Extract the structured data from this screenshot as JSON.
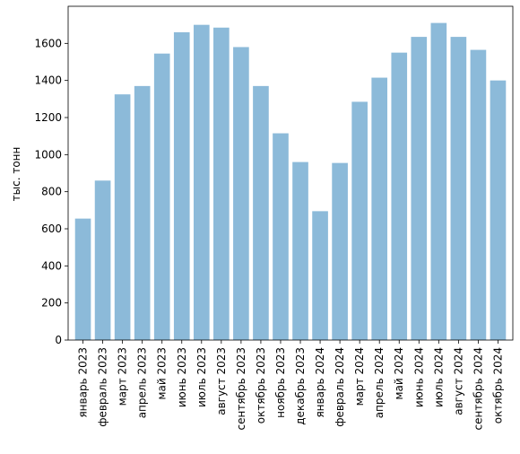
{
  "chart_data": {
    "type": "bar",
    "title": "",
    "xlabel": "",
    "ylabel": "тыс. тонн",
    "ylim": [
      0,
      1800
    ],
    "yticks": [
      0,
      200,
      400,
      600,
      800,
      1000,
      1200,
      1400,
      1600
    ],
    "grid": false,
    "bar_color": "#8cbad9",
    "categories": [
      "январь 2023",
      "февраль 2023",
      "март 2023",
      "апрель 2023",
      "май 2023",
      "июнь 2023",
      "июль 2023",
      "август 2023",
      "сентябрь 2023",
      "октябрь 2023",
      "ноябрь 2023",
      "декабрь 2023",
      "январь 2024",
      "февраль 2024",
      "март 2024",
      "апрель 2024",
      "май 2024",
      "июнь 2024",
      "июль 2024",
      "август 2024",
      "сентябрь 2024",
      "октябрь 2024"
    ],
    "values": [
      655,
      860,
      1325,
      1370,
      1545,
      1660,
      1700,
      1685,
      1580,
      1370,
      1115,
      960,
      695,
      955,
      1285,
      1415,
      1550,
      1635,
      1710,
      1635,
      1565,
      1400
    ]
  }
}
